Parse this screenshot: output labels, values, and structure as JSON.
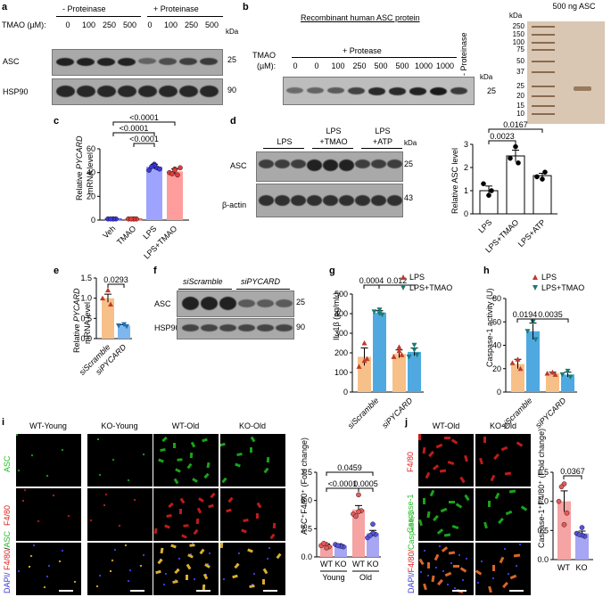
{
  "panels": {
    "a": {
      "letter": "a",
      "group_minus": "- Proteinase",
      "group_plus": "+ Proteinase",
      "tmao_label": "TMAO (µM):",
      "lanes": [
        "0",
        "100",
        "250",
        "500",
        "0",
        "100",
        "250",
        "500"
      ],
      "kda": "kDa",
      "blots": [
        {
          "name": "ASC",
          "kda": "25"
        },
        {
          "name": "HSP90",
          "kda": "90"
        }
      ]
    },
    "b": {
      "letter": "b",
      "title": "Recombinant human ASC protein",
      "tmao_label": "TMAO",
      "um_label": "(µM):",
      "group_plus": "+ Protease",
      "no_proteinase": "- Proteinase",
      "lanes": [
        "0",
        "0",
        "100",
        "250",
        "500",
        "500",
        "1000",
        "1000"
      ],
      "kda": "kDa",
      "kda_value": "25",
      "ladder_kda_header": "kDa",
      "ladder_title": "500 ng ASC",
      "ladder_marks": [
        "250",
        "150",
        "100",
        "75",
        "50",
        "37",
        "25",
        "20",
        "15",
        "10"
      ]
    },
    "c": {
      "letter": "c",
      "ylabel_prefix": "Relative ",
      "ylabel_gene": "PYCARD",
      "ylabel_suffix": "mRNA level",
      "yticks": [
        "0",
        "20",
        "40",
        "60"
      ],
      "categories": [
        "Veh",
        "TMAO",
        "LPS",
        "LPS+TMAO"
      ],
      "colors": [
        "#3a3ad8",
        "#e23b3b",
        "#9ea3ff",
        "#ff9c9c"
      ],
      "pvals": [
        "<0.0001",
        "<0.0001",
        "<0.0001"
      ]
    },
    "d": {
      "letter": "d",
      "groups": [
        "LPS",
        "LPS +TMAO",
        "LPS +ATP"
      ],
      "blots": [
        {
          "name": "ASC",
          "kda": "25"
        },
        {
          "name": "β-actin",
          "kda": "43"
        }
      ],
      "kda": "kDa",
      "ylabel": "Relative ASC level",
      "yticks": [
        "0",
        "1",
        "2",
        "3"
      ],
      "categories": [
        "LPS",
        "LPS+TMAO",
        "LPS+ATP"
      ],
      "pvals": [
        "0.0167",
        "0.0023"
      ]
    },
    "e": {
      "letter": "e",
      "ylabel_prefix": "Relative ",
      "ylabel_gene": "PYCARD",
      "ylabel_suffix": "mRNA level",
      "yticks": [
        "0.0",
        "0.5",
        "1.0",
        "1.5"
      ],
      "categories": [
        "siScramble",
        "siPYCARD"
      ],
      "pval": "0.0293"
    },
    "f": {
      "letter": "f",
      "groups": [
        "siScramble",
        "siPYCARD"
      ],
      "blots": [
        {
          "name": "ASC",
          "kda": "25"
        },
        {
          "name": "HSP90",
          "kda": "90"
        }
      ]
    },
    "g": {
      "letter": "g",
      "legend": [
        "LPS",
        "LPS+TMAO"
      ],
      "ylabel": "IL-1β (pg/mL)",
      "yticks": [
        "0",
        "100",
        "200",
        "300",
        "400",
        "500"
      ],
      "categories": [
        "siScramble",
        "siPYCARD"
      ],
      "pvals": [
        "0.0004",
        "0.012"
      ]
    },
    "h": {
      "letter": "h",
      "legend": [
        "LPS",
        "LPS+TMAO"
      ],
      "ylabel": "Caspase-1 activity (U)",
      "yticks": [
        "0",
        "20",
        "40",
        "60",
        "80"
      ],
      "categories": [
        "siScramble",
        "siPYCARD"
      ],
      "pvals": [
        "0.0194",
        "0.0035"
      ]
    },
    "i": {
      "letter": "i",
      "columns": [
        "WT-Young",
        "KO-Young",
        "WT-Old",
        "KO-Old"
      ],
      "rows": [
        "ASC",
        "F4/80",
        "DAPI/ F4/80/ASC"
      ],
      "ylabel": "ASC⁺F4/80⁺ (Fold change)",
      "yticks": [
        "0.0",
        "2.5",
        "5.0",
        "7.5"
      ],
      "categories": [
        "WT",
        "KO",
        "WT",
        "KO"
      ],
      "groups": [
        "Young",
        "Old"
      ],
      "pvals": [
        "0.0459",
        "<0.0001",
        "0.0005"
      ]
    },
    "j": {
      "letter": "j",
      "columns": [
        "WT-Old",
        "KO-Old"
      ],
      "rows": [
        "F4/80",
        "Caspase-1",
        "DAPI/F4/80/ Caspase-1"
      ],
      "ylabel": "Caspase-1⁺F4/80⁺ (Fold change)",
      "yticks": [
        "0.0",
        "0.5",
        "1.0",
        "1.5"
      ],
      "categories": [
        "WT",
        "KO"
      ],
      "pval": "0.0367"
    }
  },
  "chart_data": [
    {
      "type": "bar",
      "panel": "c",
      "categories": [
        "Veh",
        "TMAO",
        "LPS",
        "LPS+TMAO"
      ],
      "values": [
        1,
        1,
        45,
        41
      ],
      "ylabel": "Relative PYCARD mRNA level",
      "ylim": [
        0,
        60
      ]
    },
    {
      "type": "bar",
      "panel": "d",
      "categories": [
        "LPS",
        "LPS+TMAO",
        "LPS+ATP"
      ],
      "values": [
        1.0,
        2.5,
        1.65
      ],
      "ylabel": "Relative ASC level",
      "ylim": [
        0,
        3
      ]
    },
    {
      "type": "bar",
      "panel": "e",
      "categories": [
        "siScramble",
        "siPYCARD"
      ],
      "values": [
        1.0,
        0.32
      ],
      "ylabel": "Relative PYCARD mRNA level",
      "ylim": [
        0,
        1.5
      ]
    },
    {
      "type": "bar",
      "panel": "g",
      "categories": [
        "siScramble",
        "siPYCARD"
      ],
      "series": [
        {
          "name": "LPS",
          "values": [
            180,
            195
          ]
        },
        {
          "name": "LPS+TMAO",
          "values": [
            405,
            205
          ]
        }
      ],
      "ylabel": "IL-1β (pg/mL)",
      "ylim": [
        0,
        500
      ]
    },
    {
      "type": "bar",
      "panel": "h",
      "categories": [
        "siScramble",
        "siPYCARD"
      ],
      "series": [
        {
          "name": "LPS",
          "values": [
            24,
            16
          ]
        },
        {
          "name": "LPS+TMAO",
          "values": [
            52,
            15
          ]
        }
      ],
      "ylabel": "Caspase-1 activity (U)",
      "ylim": [
        0,
        80
      ]
    },
    {
      "type": "bar",
      "panel": "i",
      "categories": [
        "WT Young",
        "KO Young",
        "WT Old",
        "KO Old"
      ],
      "values": [
        1.0,
        1.0,
        4.2,
        2.1
      ],
      "ylabel": "ASC⁺F4/80⁺ (Fold change)",
      "ylim": [
        0,
        7.5
      ]
    },
    {
      "type": "bar",
      "panel": "j",
      "categories": [
        "WT",
        "KO"
      ],
      "values": [
        1.0,
        0.45
      ],
      "ylabel": "Caspase-1⁺F4/80⁺ (Fold change)",
      "ylim": [
        0,
        1.5
      ]
    }
  ]
}
